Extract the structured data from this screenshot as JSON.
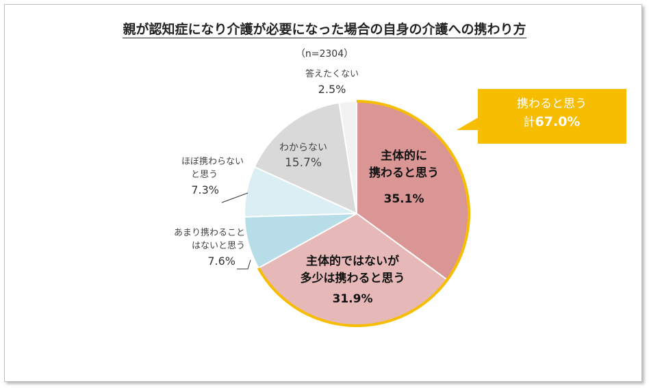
{
  "title": "親が認知症になり介護が必要になった場合の自身の介護への携わり方",
  "subtitle": "（n=2304）",
  "callout": {
    "line1": "携わると思う",
    "line2_prefix": "計",
    "line2_value": "67.0%",
    "color": "#F7BD00"
  },
  "chart_data": {
    "type": "pie",
    "title": "親が認知症になり介護が必要になった場合の自身の介護への携わり方",
    "subtitle": "（n=2304）",
    "start": "12 o'clock, clockwise",
    "slices": [
      {
        "label": "主体的に携わると思う",
        "label_lines": [
          "主体的に",
          "携わると思う"
        ],
        "value": 35.1,
        "value_label": "35.1%",
        "color": "#D99694"
      },
      {
        "label": "主体的ではないが多少は携わると思う",
        "label_lines": [
          "主体的ではないが",
          "多少は携わると思う"
        ],
        "value": 31.9,
        "value_label": "31.9%",
        "color": "#E6B9B8"
      },
      {
        "label": "あまり携わることはないと思う",
        "label_lines": [
          "あまり携わること",
          "はないと思う"
        ],
        "value": 7.6,
        "value_label": "7.6%",
        "color": "#B7DEE8"
      },
      {
        "label": "ほぼ携わらないと思う",
        "label_lines": [
          "ほぼ携わらない",
          "と思う"
        ],
        "value": 7.3,
        "value_label": "7.3%",
        "color": "#DAEEF3"
      },
      {
        "label": "わからない",
        "label_lines": [
          "わからない"
        ],
        "value": 15.7,
        "value_label": "15.7%",
        "color": "#D9D9D9"
      },
      {
        "label": "答えたくない",
        "label_lines": [
          "答えたくない"
        ],
        "value": 2.5,
        "value_label": "2.5%",
        "color": "#F2F2F2"
      }
    ],
    "highlight_color": "#F7BD00"
  }
}
